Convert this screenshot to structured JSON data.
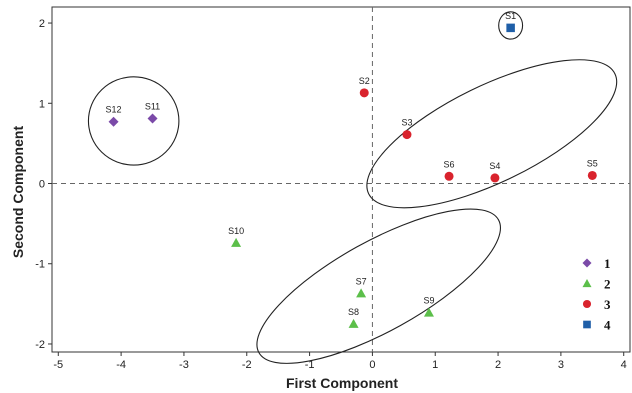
{
  "chart_data": {
    "type": "scatter",
    "title": "",
    "xlabel": "First Component",
    "ylabel": "Second Component",
    "xlim": [
      -5.1,
      4.1
    ],
    "ylim": [
      -2.1,
      2.2
    ],
    "xticks": [
      -5,
      -4,
      -3,
      -2,
      -1,
      0,
      1,
      2,
      3,
      4
    ],
    "yticks": [
      -2,
      -1,
      0,
      1,
      2
    ],
    "reference_lines": {
      "x": 0,
      "y": 0,
      "style": "dashed"
    },
    "grid": false,
    "legend_position": "bottom-right",
    "series": [
      {
        "name": "1",
        "marker": "diamond",
        "color": "#7b4aa8",
        "points": [
          {
            "label": "S12",
            "x": -4.12,
            "y": 0.77
          },
          {
            "label": "S11",
            "x": -3.5,
            "y": 0.81
          }
        ]
      },
      {
        "name": "2",
        "marker": "triangle",
        "color": "#5cbf4a",
        "points": [
          {
            "label": "S10",
            "x": -2.17,
            "y": -0.74
          },
          {
            "label": "S7",
            "x": -0.18,
            "y": -1.37
          },
          {
            "label": "S8",
            "x": -0.3,
            "y": -1.75
          },
          {
            "label": "S9",
            "x": 0.9,
            "y": -1.61
          }
        ]
      },
      {
        "name": "3",
        "marker": "circle",
        "color": "#d9232d",
        "points": [
          {
            "label": "S2",
            "x": -0.13,
            "y": 1.13
          },
          {
            "label": "S3",
            "x": 0.55,
            "y": 0.61
          },
          {
            "label": "S6",
            "x": 1.22,
            "y": 0.09
          },
          {
            "label": "S4",
            "x": 1.95,
            "y": 0.07
          },
          {
            "label": "S5",
            "x": 3.5,
            "y": 0.1
          }
        ]
      },
      {
        "name": "4",
        "marker": "square",
        "color": "#1f5fa8",
        "points": [
          {
            "label": "S1",
            "x": 2.2,
            "y": 1.94
          }
        ]
      }
    ],
    "cluster_ellipses": [
      {
        "cx": -3.8,
        "cy": 0.78,
        "rx": 0.72,
        "ry": 0.55,
        "angle": 0
      },
      {
        "cx": 0.1,
        "cy": -1.28,
        "rx": 2.18,
        "ry": 0.56,
        "angle": -29
      },
      {
        "cx": 1.9,
        "cy": 0.62,
        "rx": 2.18,
        "ry": 0.6,
        "angle": -26
      },
      {
        "cx": 2.2,
        "cy": 1.97,
        "rx": 0.19,
        "ry": 0.17,
        "angle": 0
      }
    ]
  }
}
